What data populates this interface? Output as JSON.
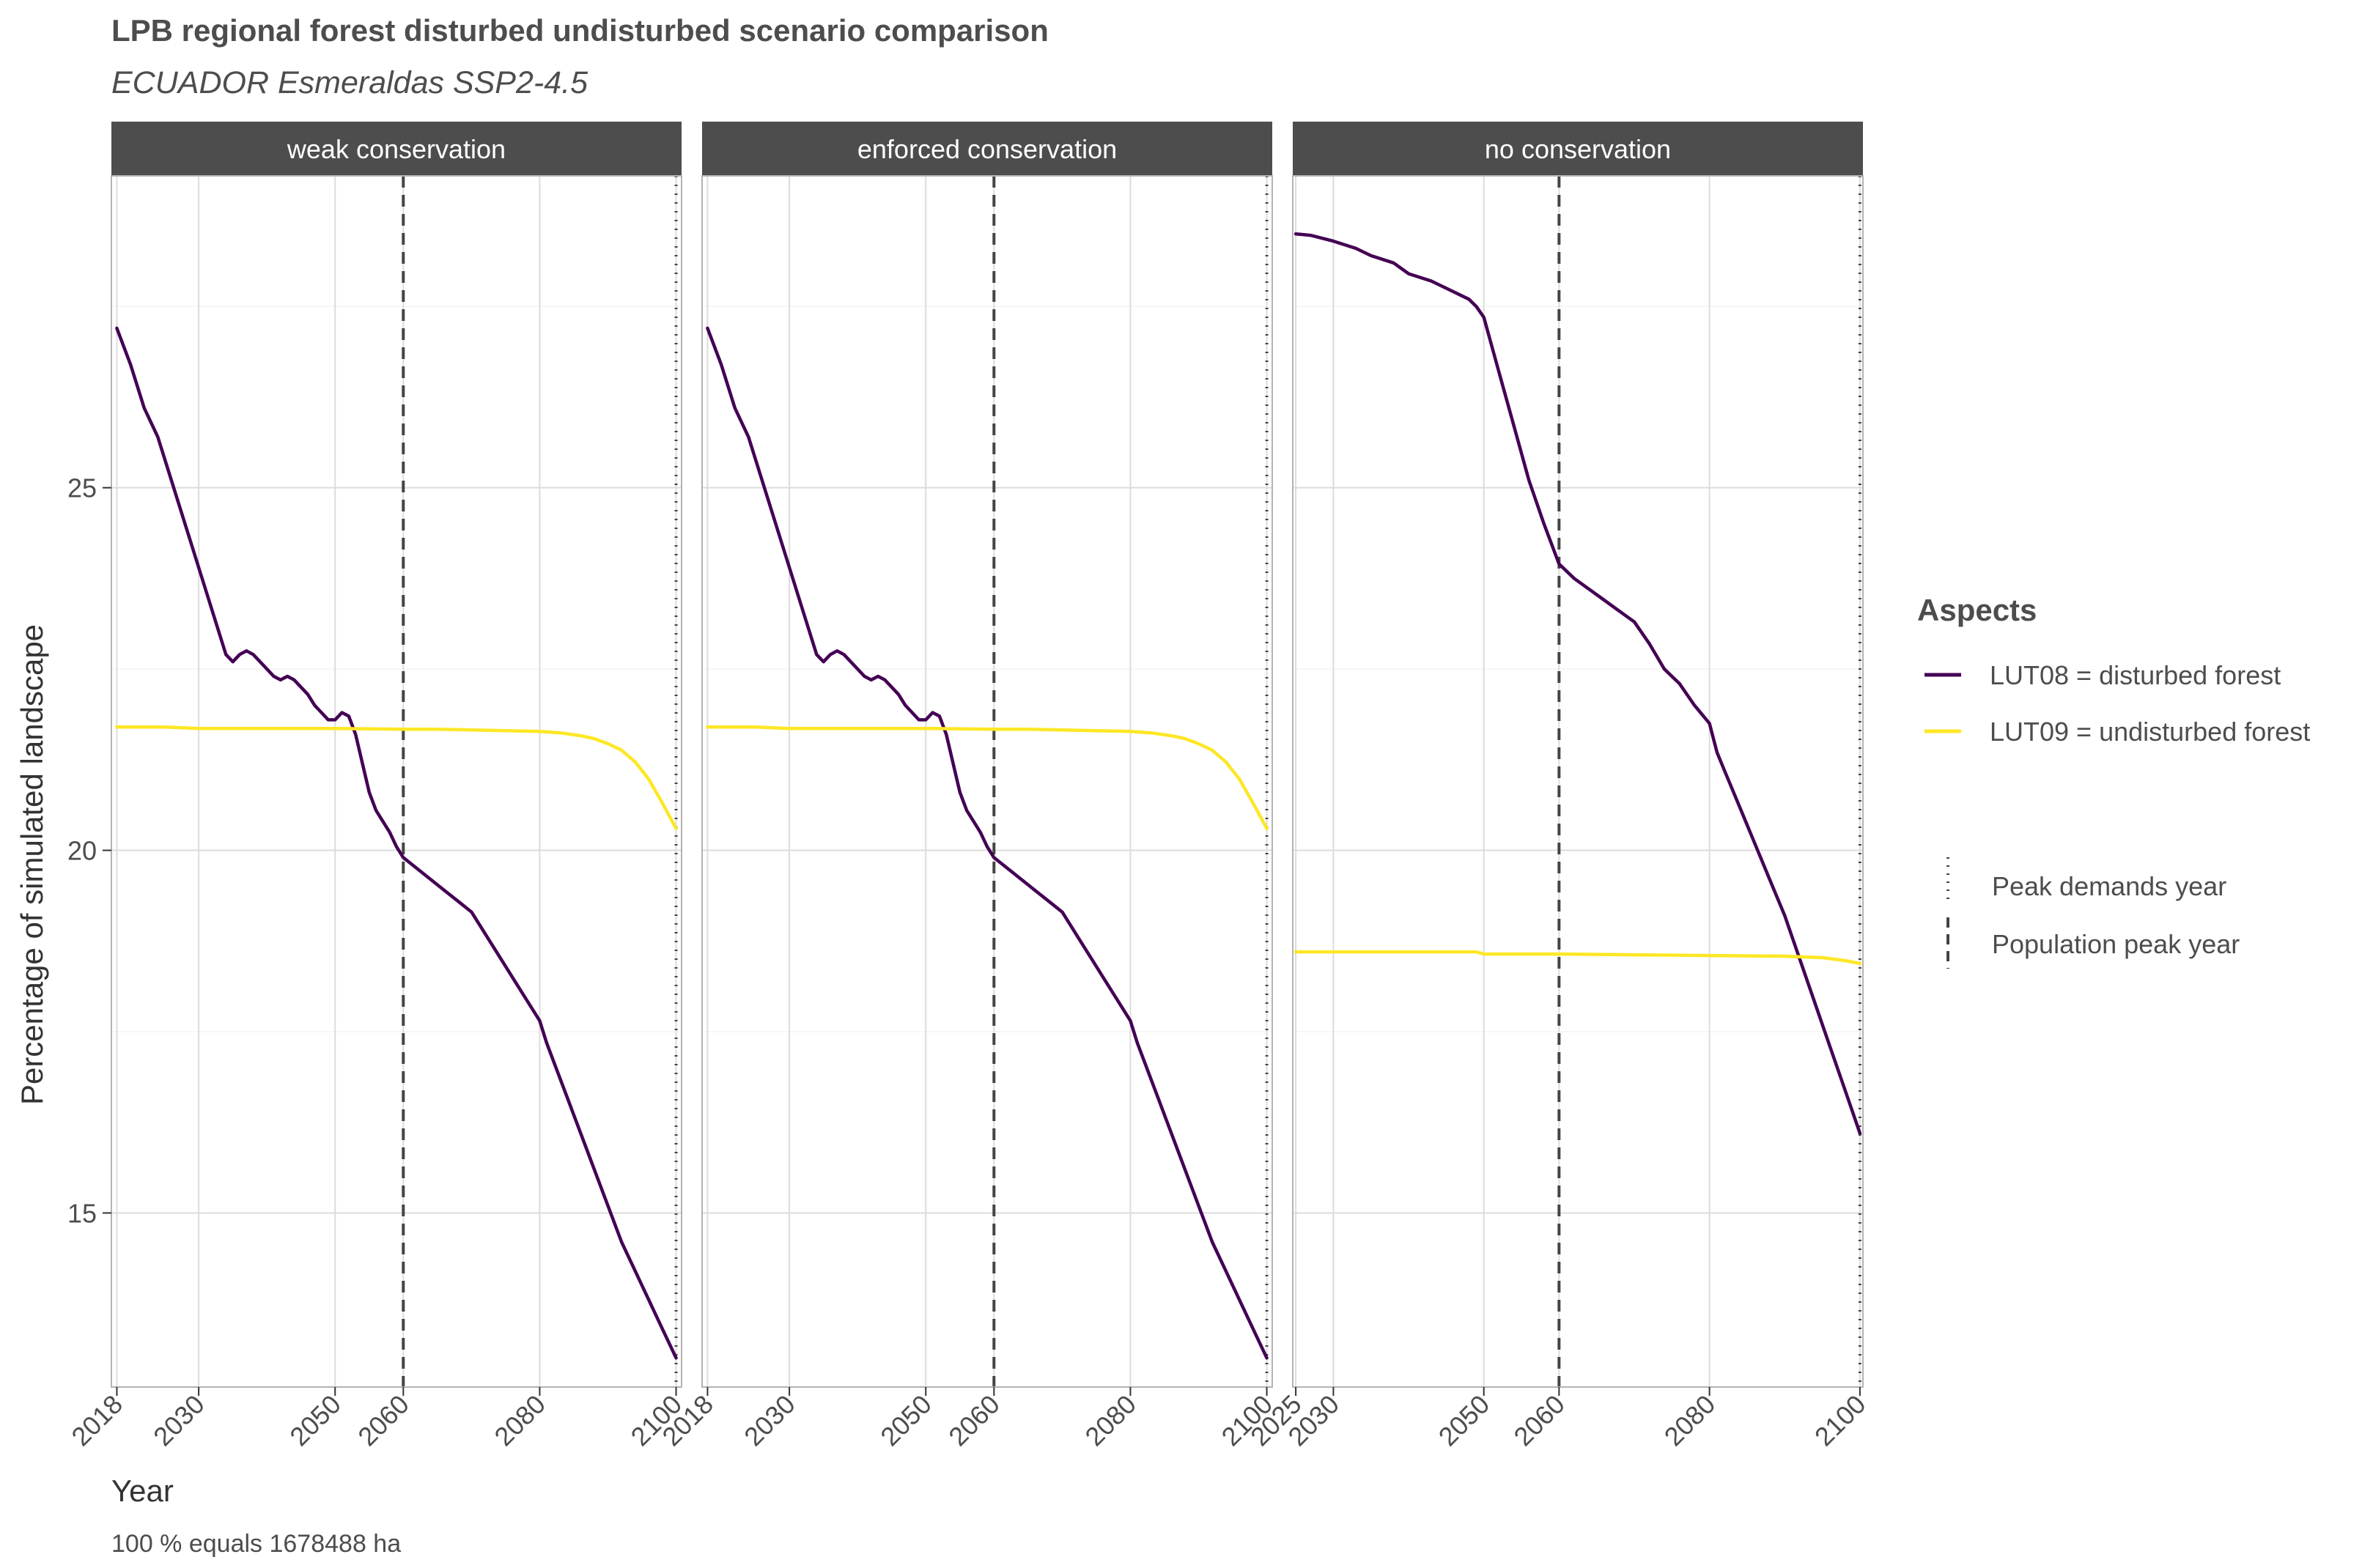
{
  "chart_data": {
    "type": "line",
    "title": "LPB regional forest disturbed undisturbed scenario comparison",
    "subtitle": "ECUADOR Esmeraldas SSP2-4.5",
    "xlabel": "Year",
    "ylabel": "Percentage of simulated landscape",
    "caption": "100 % equals 1678488 ha",
    "ylim": [
      12.6,
      29.3
    ],
    "y_ticks": [
      15,
      20,
      25
    ],
    "grid": true,
    "legend_position": "right",
    "legend": {
      "title": "Aspects",
      "series_entries": [
        {
          "label": "LUT08 = disturbed forest",
          "color": "#440154"
        },
        {
          "label": "LUT09 = undisturbed forest",
          "color": "#FDE725"
        }
      ],
      "line_entries": [
        {
          "label": "Peak demands year",
          "style": "dotted"
        },
        {
          "label": "Population peak year",
          "style": "dashed"
        }
      ]
    },
    "panels": [
      {
        "label": "weak conservation",
        "xlim": [
          2017.2,
          2100.8
        ],
        "x_ticks": [
          2018,
          2030,
          2050,
          2060,
          2080,
          2100
        ],
        "population_peak_year": 2060,
        "peak_demands_year": 2100,
        "series": [
          {
            "name": "LUT08 = disturbed forest",
            "color": "#440154",
            "x": [
              2018,
              2020,
              2022,
              2024,
              2026,
              2028,
              2030,
              2032,
              2034,
              2035,
              2036,
              2037,
              2038,
              2039,
              2040,
              2041,
              2042,
              2043,
              2044,
              2045,
              2046,
              2047,
              2048,
              2049,
              2050,
              2051,
              2052,
              2053,
              2054,
              2055,
              2056,
              2057,
              2058,
              2059,
              2060,
              2062,
              2064,
              2066,
              2068,
              2070,
              2072,
              2074,
              2076,
              2078,
              2080,
              2081,
              2082,
              2084,
              2086,
              2088,
              2090,
              2092,
              2094,
              2096,
              2098,
              2100
            ],
            "y": [
              27.2,
              26.7,
              26.1,
              25.7,
              25.1,
              24.5,
              23.9,
              23.3,
              22.7,
              22.6,
              22.7,
              22.75,
              22.7,
              22.6,
              22.5,
              22.4,
              22.35,
              22.4,
              22.35,
              22.25,
              22.15,
              22.0,
              21.9,
              21.8,
              21.8,
              21.9,
              21.85,
              21.6,
              21.2,
              20.8,
              20.55,
              20.4,
              20.25,
              20.05,
              19.9,
              19.75,
              19.6,
              19.45,
              19.3,
              19.15,
              18.85,
              18.55,
              18.25,
              17.95,
              17.65,
              17.35,
              17.1,
              16.6,
              16.1,
              15.6,
              15.1,
              14.6,
              14.2,
              13.8,
              13.4,
              13.0
            ]
          },
          {
            "name": "LUT09 = undisturbed forest",
            "color": "#FDE725",
            "x": [
              2018,
              2025,
              2030,
              2040,
              2050,
              2060,
              2065,
              2070,
              2075,
              2080,
              2083,
              2086,
              2088,
              2090,
              2092,
              2094,
              2096,
              2098,
              2100
            ],
            "y": [
              21.7,
              21.7,
              21.68,
              21.68,
              21.68,
              21.67,
              21.67,
              21.66,
              21.65,
              21.64,
              21.62,
              21.58,
              21.54,
              21.47,
              21.38,
              21.22,
              20.98,
              20.65,
              20.3
            ]
          }
        ]
      },
      {
        "label": "enforced conservation",
        "xlim": [
          2017.2,
          2100.8
        ],
        "x_ticks": [
          2018,
          2030,
          2050,
          2060,
          2080,
          2100
        ],
        "population_peak_year": 2060,
        "peak_demands_year": 2100,
        "series": [
          {
            "name": "LUT08 = disturbed forest",
            "color": "#440154",
            "x": [
              2018,
              2020,
              2022,
              2024,
              2026,
              2028,
              2030,
              2032,
              2034,
              2035,
              2036,
              2037,
              2038,
              2039,
              2040,
              2041,
              2042,
              2043,
              2044,
              2045,
              2046,
              2047,
              2048,
              2049,
              2050,
              2051,
              2052,
              2053,
              2054,
              2055,
              2056,
              2057,
              2058,
              2059,
              2060,
              2062,
              2064,
              2066,
              2068,
              2070,
              2072,
              2074,
              2076,
              2078,
              2080,
              2081,
              2082,
              2084,
              2086,
              2088,
              2090,
              2092,
              2094,
              2096,
              2098,
              2100
            ],
            "y": [
              27.2,
              26.7,
              26.1,
              25.7,
              25.1,
              24.5,
              23.9,
              23.3,
              22.7,
              22.6,
              22.7,
              22.75,
              22.7,
              22.6,
              22.5,
              22.4,
              22.35,
              22.4,
              22.35,
              22.25,
              22.15,
              22.0,
              21.9,
              21.8,
              21.8,
              21.9,
              21.85,
              21.6,
              21.2,
              20.8,
              20.55,
              20.4,
              20.25,
              20.05,
              19.9,
              19.75,
              19.6,
              19.45,
              19.3,
              19.15,
              18.85,
              18.55,
              18.25,
              17.95,
              17.65,
              17.35,
              17.1,
              16.6,
              16.1,
              15.6,
              15.1,
              14.6,
              14.2,
              13.8,
              13.4,
              13.0
            ]
          },
          {
            "name": "LUT09 = undisturbed forest",
            "color": "#FDE725",
            "x": [
              2018,
              2025,
              2030,
              2040,
              2050,
              2060,
              2065,
              2070,
              2075,
              2080,
              2083,
              2086,
              2088,
              2090,
              2092,
              2094,
              2096,
              2098,
              2100
            ],
            "y": [
              21.7,
              21.7,
              21.68,
              21.68,
              21.68,
              21.67,
              21.67,
              21.66,
              21.65,
              21.64,
              21.62,
              21.58,
              21.54,
              21.47,
              21.38,
              21.22,
              20.98,
              20.65,
              20.3
            ]
          }
        ]
      },
      {
        "label": "no conservation",
        "xlim": [
          2024.6,
          2100.4
        ],
        "x_ticks": [
          2025,
          2030,
          2050,
          2060,
          2080,
          2100
        ],
        "population_peak_year": 2060,
        "peak_demands_year": 2100,
        "series": [
          {
            "name": "LUT08 = disturbed forest",
            "color": "#440154",
            "x": [
              2025,
              2027,
              2030,
              2033,
              2035,
              2038,
              2040,
              2043,
              2045,
              2048,
              2049,
              2050,
              2052,
              2054,
              2056,
              2058,
              2060,
              2062,
              2064,
              2066,
              2068,
              2070,
              2072,
              2074,
              2076,
              2078,
              2080,
              2081,
              2082,
              2084,
              2086,
              2088,
              2090,
              2092,
              2094,
              2096,
              2098,
              2100
            ],
            "y": [
              28.5,
              28.48,
              28.4,
              28.3,
              28.2,
              28.1,
              27.95,
              27.85,
              27.75,
              27.6,
              27.5,
              27.35,
              26.6,
              25.85,
              25.1,
              24.5,
              23.95,
              23.75,
              23.6,
              23.45,
              23.3,
              23.15,
              22.85,
              22.5,
              22.3,
              22.0,
              21.75,
              21.35,
              21.1,
              20.6,
              20.1,
              19.6,
              19.1,
              18.5,
              17.9,
              17.3,
              16.7,
              16.1
            ]
          },
          {
            "name": "LUT09 = undisturbed forest",
            "color": "#FDE725",
            "x": [
              2025,
              2030,
              2040,
              2049,
              2050,
              2060,
              2070,
              2080,
              2090,
              2095,
              2098,
              2100
            ],
            "y": [
              18.6,
              18.6,
              18.6,
              18.6,
              18.57,
              18.57,
              18.56,
              18.55,
              18.54,
              18.52,
              18.48,
              18.44
            ]
          }
        ]
      }
    ]
  }
}
